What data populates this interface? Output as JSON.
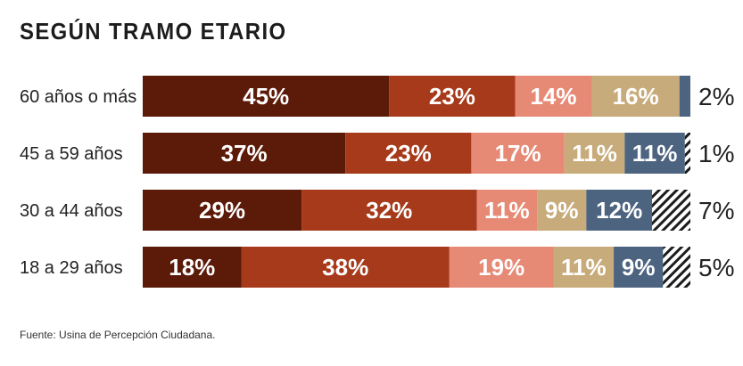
{
  "chart_data": {
    "type": "bar",
    "orientation": "horizontal",
    "stacked": true,
    "title": "SEGÚN TRAMO ETARIO",
    "source": "Fuente: Usina de Percepción Ciudadana.",
    "categories": [
      "60 años o más",
      "45 a 59 años",
      "30 a 44 años",
      "18 a 29 años"
    ],
    "series": [
      {
        "name": "segment-1",
        "color": "#5c1a08",
        "values": [
          45,
          37,
          29,
          18
        ],
        "labels": [
          "45%",
          "37%",
          "29%",
          "18%"
        ]
      },
      {
        "name": "segment-2",
        "color": "#a63a1a",
        "values": [
          23,
          23,
          32,
          38
        ],
        "labels": [
          "23%",
          "23%",
          "32%",
          "38%"
        ]
      },
      {
        "name": "segment-3",
        "color": "#e68a76",
        "values": [
          14,
          17,
          11,
          19
        ],
        "labels": [
          "14%",
          "17%",
          "11%",
          "19%"
        ]
      },
      {
        "name": "segment-4",
        "color": "#c8ab7a",
        "values": [
          16,
          11,
          9,
          11
        ],
        "labels": [
          "16%",
          "11%",
          "9%",
          "11%"
        ]
      },
      {
        "name": "segment-5",
        "color": "#4d6480",
        "values": [
          2,
          11,
          12,
          9
        ],
        "labels": [
          "",
          "11%",
          "12%",
          "9%"
        ]
      },
      {
        "name": "segment-6-hatched",
        "color": "hatched",
        "values": [
          0,
          1,
          7,
          5
        ],
        "labels": [
          "",
          "",
          "",
          ""
        ]
      }
    ],
    "outside_labels": [
      "2%",
      "1%",
      "7%",
      "5%"
    ],
    "xlim": [
      0,
      100
    ]
  }
}
